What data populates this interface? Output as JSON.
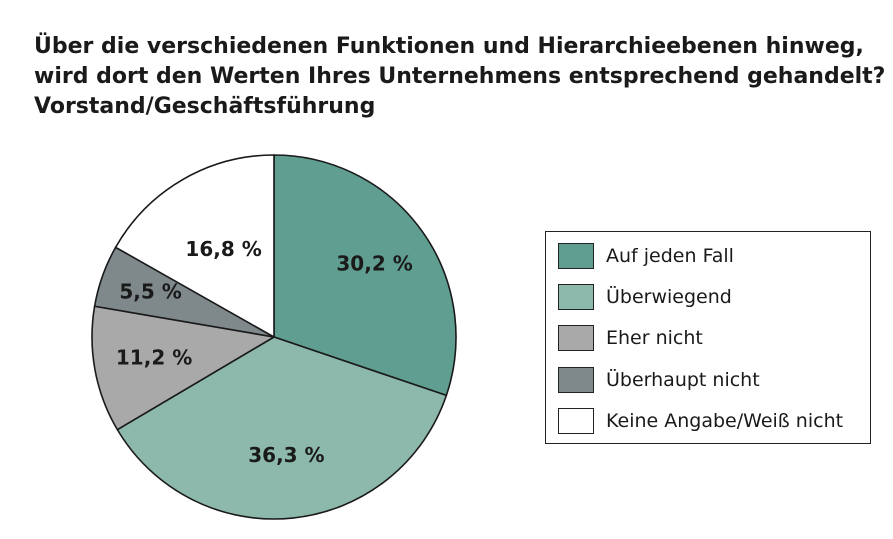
{
  "chart_data": {
    "type": "pie",
    "title_lines": [
      "Über die verschiedenen Funktionen und Hierarchieebenen hinweg,",
      "wird dort den Werten Ihres Unternehmens entsprechend gehandelt?",
      "Vorstand/Geschäftsführung"
    ],
    "slices": [
      {
        "label": "Auf jeden Fall",
        "value": 30.2,
        "value_label": "30,2 %",
        "color": "#5f9e90"
      },
      {
        "label": "Überwiegend",
        "value": 36.3,
        "value_label": "36,3 %",
        "color": "#8db8ac"
      },
      {
        "label": "Eher nicht",
        "value": 11.2,
        "value_label": "11,2 %",
        "color": "#a9a9a9"
      },
      {
        "label": "Überhaupt nicht",
        "value": 5.5,
        "value_label": "5,5 %",
        "color": "#7f898b"
      },
      {
        "label": "Keine Angabe/Weiß nicht",
        "value": 16.8,
        "value_label": "16,8 %",
        "color": "#ffffff"
      }
    ],
    "start": "12 o'clock",
    "direction": "clockwise",
    "legend_position": "right"
  }
}
